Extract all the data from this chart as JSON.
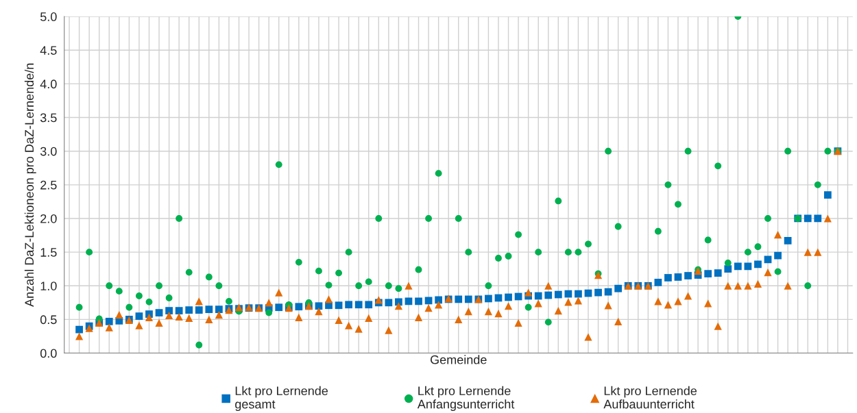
{
  "chart_data": {
    "type": "scatter",
    "xlabel": "Gemeinde",
    "ylabel": "Anzahl DaZ-Lektioneon pro DaZ-Lernende/n",
    "categories": [
      null,
      null,
      null,
      null,
      null,
      null,
      null,
      null,
      null,
      null,
      null,
      null,
      null,
      null,
      null,
      null,
      null,
      null,
      null,
      null,
      null,
      null,
      null,
      null,
      null,
      null,
      null,
      null,
      null,
      null,
      null,
      null,
      null,
      null,
      null,
      null,
      null,
      null,
      null,
      null,
      null,
      null,
      null,
      null,
      null,
      null,
      null,
      null,
      null,
      null,
      null,
      null,
      null,
      null,
      null,
      null,
      null,
      null,
      null,
      null,
      null,
      null,
      null,
      null,
      null,
      null,
      null,
      null,
      null,
      null,
      null,
      null,
      null,
      null,
      null,
      null,
      null,
      null,
      null
    ],
    "ylim": [
      0,
      5
    ],
    "yticks": [
      {
        "value": 0,
        "label": "0.0"
      },
      {
        "value": 0.5,
        "label": "0.5"
      },
      {
        "value": 1,
        "label": "1.0"
      },
      {
        "value": 1.5,
        "label": "1.5"
      },
      {
        "value": 2,
        "label": "2.0"
      },
      {
        "value": 2.5,
        "label": "2.5"
      },
      {
        "value": 3,
        "label": "3.0"
      },
      {
        "value": 3.5,
        "label": "3.5"
      },
      {
        "value": 4,
        "label": "4.0"
      },
      {
        "value": 4.5,
        "label": "4.5"
      },
      {
        "value": 5,
        "label": "5.0"
      }
    ],
    "grid": true,
    "legend": "bottom",
    "tick_labels": "y",
    "series": [
      {
        "name": "Lkt pro Lernende gesamt",
        "color": "#0070c0",
        "marker": "square",
        "values": [
          null,
          0.35,
          0.4,
          0.45,
          0.47,
          0.48,
          0.5,
          0.55,
          0.58,
          0.6,
          0.63,
          0.63,
          0.64,
          0.64,
          0.65,
          0.65,
          0.66,
          0.66,
          0.67,
          0.67,
          0.67,
          0.68,
          0.68,
          0.69,
          0.7,
          0.7,
          0.71,
          0.71,
          0.72,
          0.72,
          0.72,
          0.75,
          0.75,
          0.76,
          0.77,
          0.77,
          0.78,
          0.79,
          0.8,
          0.8,
          0.8,
          0.8,
          0.81,
          0.82,
          0.83,
          0.84,
          0.85,
          0.85,
          0.86,
          0.87,
          0.88,
          0.88,
          0.89,
          0.9,
          0.91,
          0.96,
          1.0,
          1.0,
          1.0,
          1.05,
          1.12,
          1.13,
          1.15,
          1.16,
          1.18,
          1.19,
          1.25,
          1.29,
          1.29,
          1.32,
          1.39,
          1.45,
          1.67,
          2.0,
          2.0,
          2.0,
          2.35,
          3.0,
          null
        ]
      },
      {
        "name": "Lkt pro Lernende Anfangsunterricht",
        "color": "#00b050",
        "marker": "circle",
        "values": [
          null,
          0.68,
          1.5,
          0.51,
          1.0,
          0.92,
          0.68,
          0.85,
          0.76,
          1.0,
          0.82,
          2.0,
          1.2,
          0.12,
          1.13,
          1.0,
          0.77,
          0.62,
          null,
          null,
          0.6,
          2.8,
          0.72,
          1.35,
          0.75,
          1.22,
          1.01,
          1.19,
          1.5,
          1.0,
          1.06,
          2.0,
          1.0,
          0.96,
          null,
          1.24,
          2.0,
          2.67,
          null,
          2.0,
          1.5,
          null,
          1.0,
          1.41,
          1.44,
          1.76,
          0.68,
          1.5,
          0.46,
          2.26,
          1.5,
          1.5,
          1.62,
          1.18,
          3.0,
          1.88,
          null,
          null,
          null,
          1.81,
          2.5,
          2.21,
          3.0,
          1.24,
          1.68,
          2.78,
          1.34,
          5.0,
          1.5,
          1.58,
          2.0,
          1.21,
          3.0,
          2.0,
          1.0,
          2.5,
          3.0,
          3.0,
          null
        ]
      },
      {
        "name": "Lkt pro Lernende Aufbauunterricht",
        "color": "#e36c09",
        "marker": "triangle",
        "values": [
          null,
          0.25,
          0.37,
          0.45,
          0.38,
          0.57,
          0.49,
          0.41,
          0.53,
          0.45,
          0.56,
          0.54,
          0.52,
          0.77,
          0.5,
          0.57,
          0.64,
          0.68,
          0.68,
          0.67,
          0.75,
          0.9,
          0.67,
          0.53,
          0.7,
          0.62,
          0.8,
          0.49,
          0.41,
          0.36,
          0.52,
          0.79,
          0.34,
          0.7,
          1.0,
          0.53,
          0.67,
          0.72,
          0.81,
          0.5,
          0.62,
          0.8,
          0.62,
          0.59,
          0.7,
          0.45,
          0.9,
          0.74,
          1.0,
          0.63,
          0.76,
          0.78,
          0.24,
          1.16,
          0.71,
          0.47,
          1.0,
          1.0,
          1.0,
          0.77,
          0.72,
          0.77,
          0.85,
          1.22,
          0.74,
          0.4,
          1.0,
          1.0,
          1.0,
          1.03,
          1.2,
          1.76,
          1.0,
          null,
          1.5,
          1.5,
          2.0,
          3.0,
          null
        ]
      }
    ]
  }
}
